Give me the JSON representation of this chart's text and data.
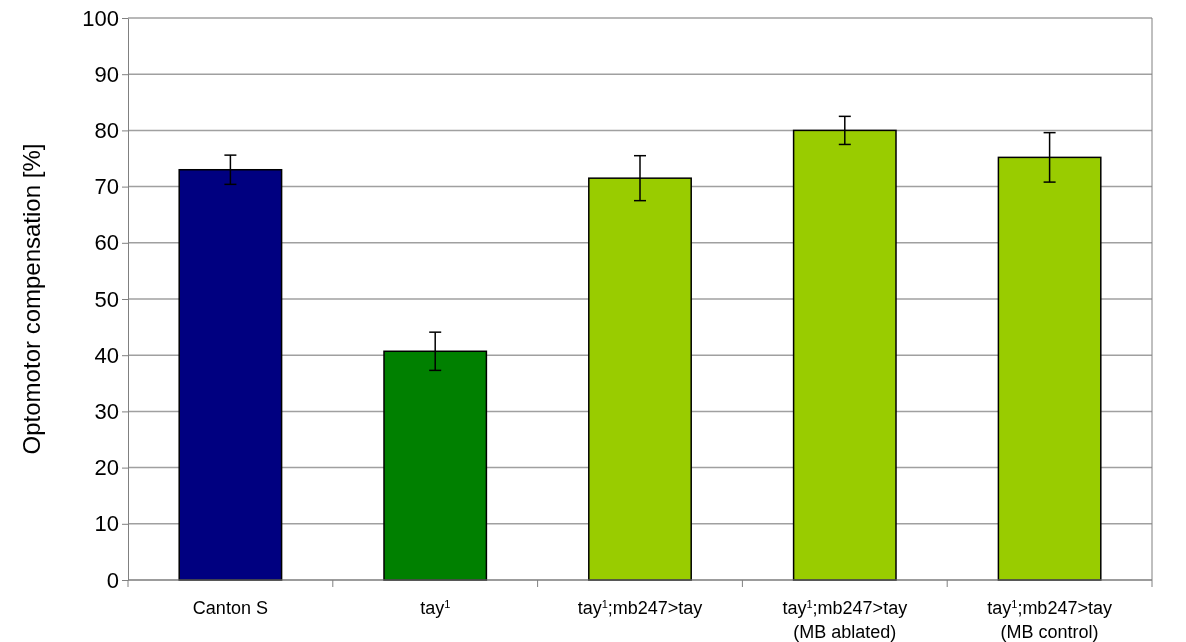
{
  "chart_data": {
    "type": "bar",
    "ylabel": "Optomotor compensation [%]",
    "categories": [
      "Canton S",
      "tay$^{1}$",
      "tay$^{1}$;mb247>tay",
      "tay$^{1}$;mb247>tay\n(MB ablated)",
      "tay$^{1}$;mb247>tay\n(MB control)"
    ],
    "values": [
      73.0,
      40.7,
      71.5,
      80.0,
      75.2
    ],
    "errors": [
      2.6,
      3.4,
      4.0,
      2.5,
      4.4
    ],
    "colors": [
      "#000080",
      "#008000",
      "#99cc00",
      "#99cc00",
      "#99cc00"
    ],
    "ylim": [
      0,
      100
    ],
    "yticks": [
      0,
      10,
      20,
      30,
      40,
      50,
      60,
      70,
      80,
      90,
      100
    ],
    "grid": "y"
  }
}
